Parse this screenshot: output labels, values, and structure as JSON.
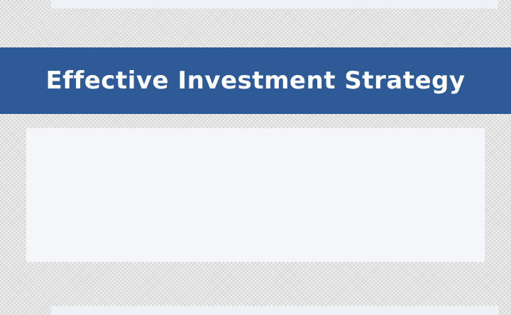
{
  "slide": {
    "title": "Effective Investment Strategy"
  },
  "colors": {
    "banner": "#2f5a98",
    "title_text": "#ffffff",
    "panel": "#f4f6fa",
    "background": "#d9d9d9"
  }
}
